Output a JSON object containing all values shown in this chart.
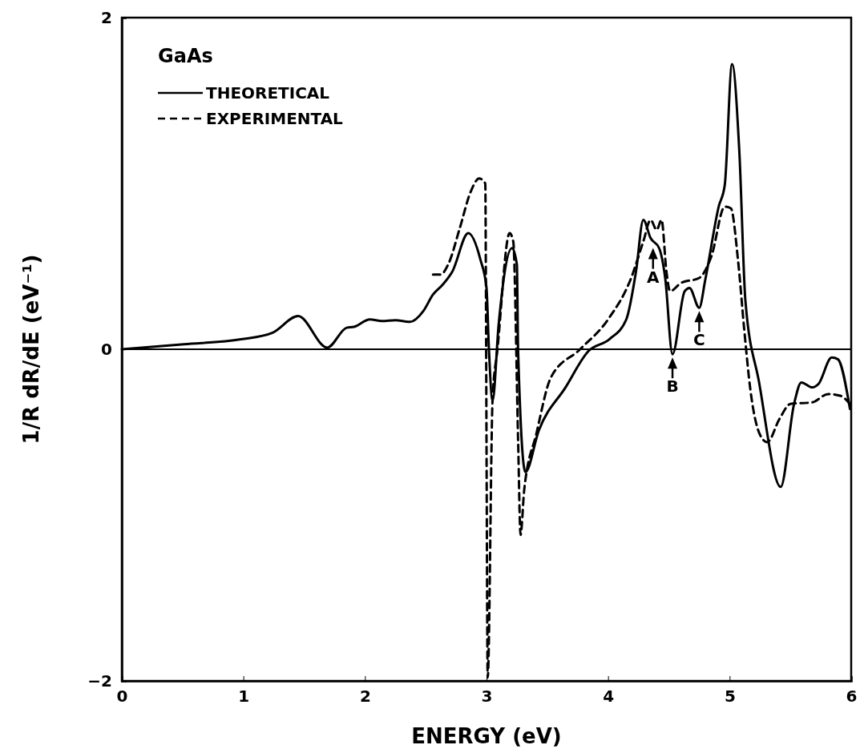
{
  "chart_data": {
    "type": "line",
    "xlabel": "ENERGY (eV)",
    "ylabel": "1/R dR/dE (eV⁻¹)",
    "legend_title": "GaAs",
    "legend": "top left",
    "xlim": [
      0,
      6
    ],
    "ylim": [
      -2,
      2
    ],
    "xticks": [
      0,
      1,
      2,
      3,
      4,
      5,
      6
    ],
    "yticks": [
      {
        "value": -2,
        "label": "−2"
      },
      0,
      2
    ],
    "grid": false,
    "ref_lines": [
      {
        "axis": "y",
        "value": 0,
        "color": "#000000"
      }
    ],
    "annotations": [
      {
        "text": "A",
        "x": 4.37,
        "y": 0.63
      },
      {
        "text": "B",
        "x": 4.53,
        "y": -0.03
      },
      {
        "text": "C",
        "x": 4.75,
        "y": 0.25
      }
    ],
    "series": [
      {
        "name": "THEORETICAL",
        "color": "#000000",
        "line_style": "solid",
        "x": [
          0,
          0.51,
          0.98,
          1.24,
          1.45,
          1.69,
          1.85,
          1.91,
          2.04,
          2.14,
          2.25,
          2.37,
          2.48,
          2.56,
          2.64,
          2.72,
          2.85,
          2.95,
          3.0,
          3.02,
          3.05,
          3.1,
          3.21,
          3.25,
          3.26,
          3.32,
          3.43,
          3.65,
          3.84,
          4.01,
          4.15,
          4.23,
          4.29,
          4.35,
          4.42,
          4.47,
          4.53,
          4.63,
          4.67,
          4.75,
          4.8,
          4.91,
          4.96,
          5.02,
          5.08,
          5.13,
          5.24,
          5.42,
          5.53,
          5.59,
          5.68,
          5.73,
          5.84,
          5.89,
          5.99
        ],
        "values": [
          0,
          0.03,
          0.06,
          0.1,
          0.2,
          0.01,
          0.13,
          0.135,
          0.18,
          0.17,
          0.175,
          0.165,
          0.23,
          0.33,
          0.39,
          0.47,
          0.7,
          0.54,
          0.37,
          0,
          -0.31,
          0.15,
          0.61,
          0.51,
          -0.01,
          -0.74,
          -0.49,
          -0.23,
          -0.01,
          0.06,
          0.18,
          0.47,
          0.78,
          0.67,
          0.61,
          0.43,
          -0.03,
          0.35,
          0.37,
          0.25,
          0.42,
          0.86,
          0.99,
          1.72,
          1.19,
          0.29,
          -0.19,
          -0.83,
          -0.33,
          -0.2,
          -0.23,
          -0.21,
          -0.05,
          -0.06,
          -0.36
        ]
      },
      {
        "name": "EXPERIMENTAL",
        "color": "#000000",
        "line_style": "dashed",
        "x": [
          2.56,
          2.62,
          2.69,
          2.78,
          2.87,
          2.94,
          2.99,
          2.995,
          3.0,
          3.01,
          3.05,
          3.09,
          3.19,
          3.22,
          3.26,
          3.28,
          3.31,
          3.41,
          3.53,
          3.77,
          4.0,
          4.19,
          4.29,
          4.35,
          4.4,
          4.44,
          4.48,
          4.51,
          4.6,
          4.75,
          4.85,
          4.96,
          5.01,
          5.07,
          5.12,
          5.17,
          5.26,
          5.31,
          5.41,
          5.5,
          5.68,
          5.81,
          5.91,
          5.99
        ],
        "values": [
          0.45,
          0.45,
          0.52,
          0.73,
          0.95,
          1.03,
          1.0,
          0.41,
          -0.56,
          -1.98,
          -0.3,
          0,
          0.7,
          0.65,
          -0.55,
          -1.12,
          -0.85,
          -0.51,
          -0.17,
          0,
          0.18,
          0.43,
          0.65,
          0.78,
          0.72,
          0.78,
          0.47,
          0.35,
          0.4,
          0.43,
          0.56,
          0.86,
          0.85,
          0.53,
          0.12,
          -0.24,
          -0.53,
          -0.56,
          -0.42,
          -0.33,
          -0.32,
          -0.27,
          -0.28,
          -0.33
        ]
      }
    ]
  }
}
